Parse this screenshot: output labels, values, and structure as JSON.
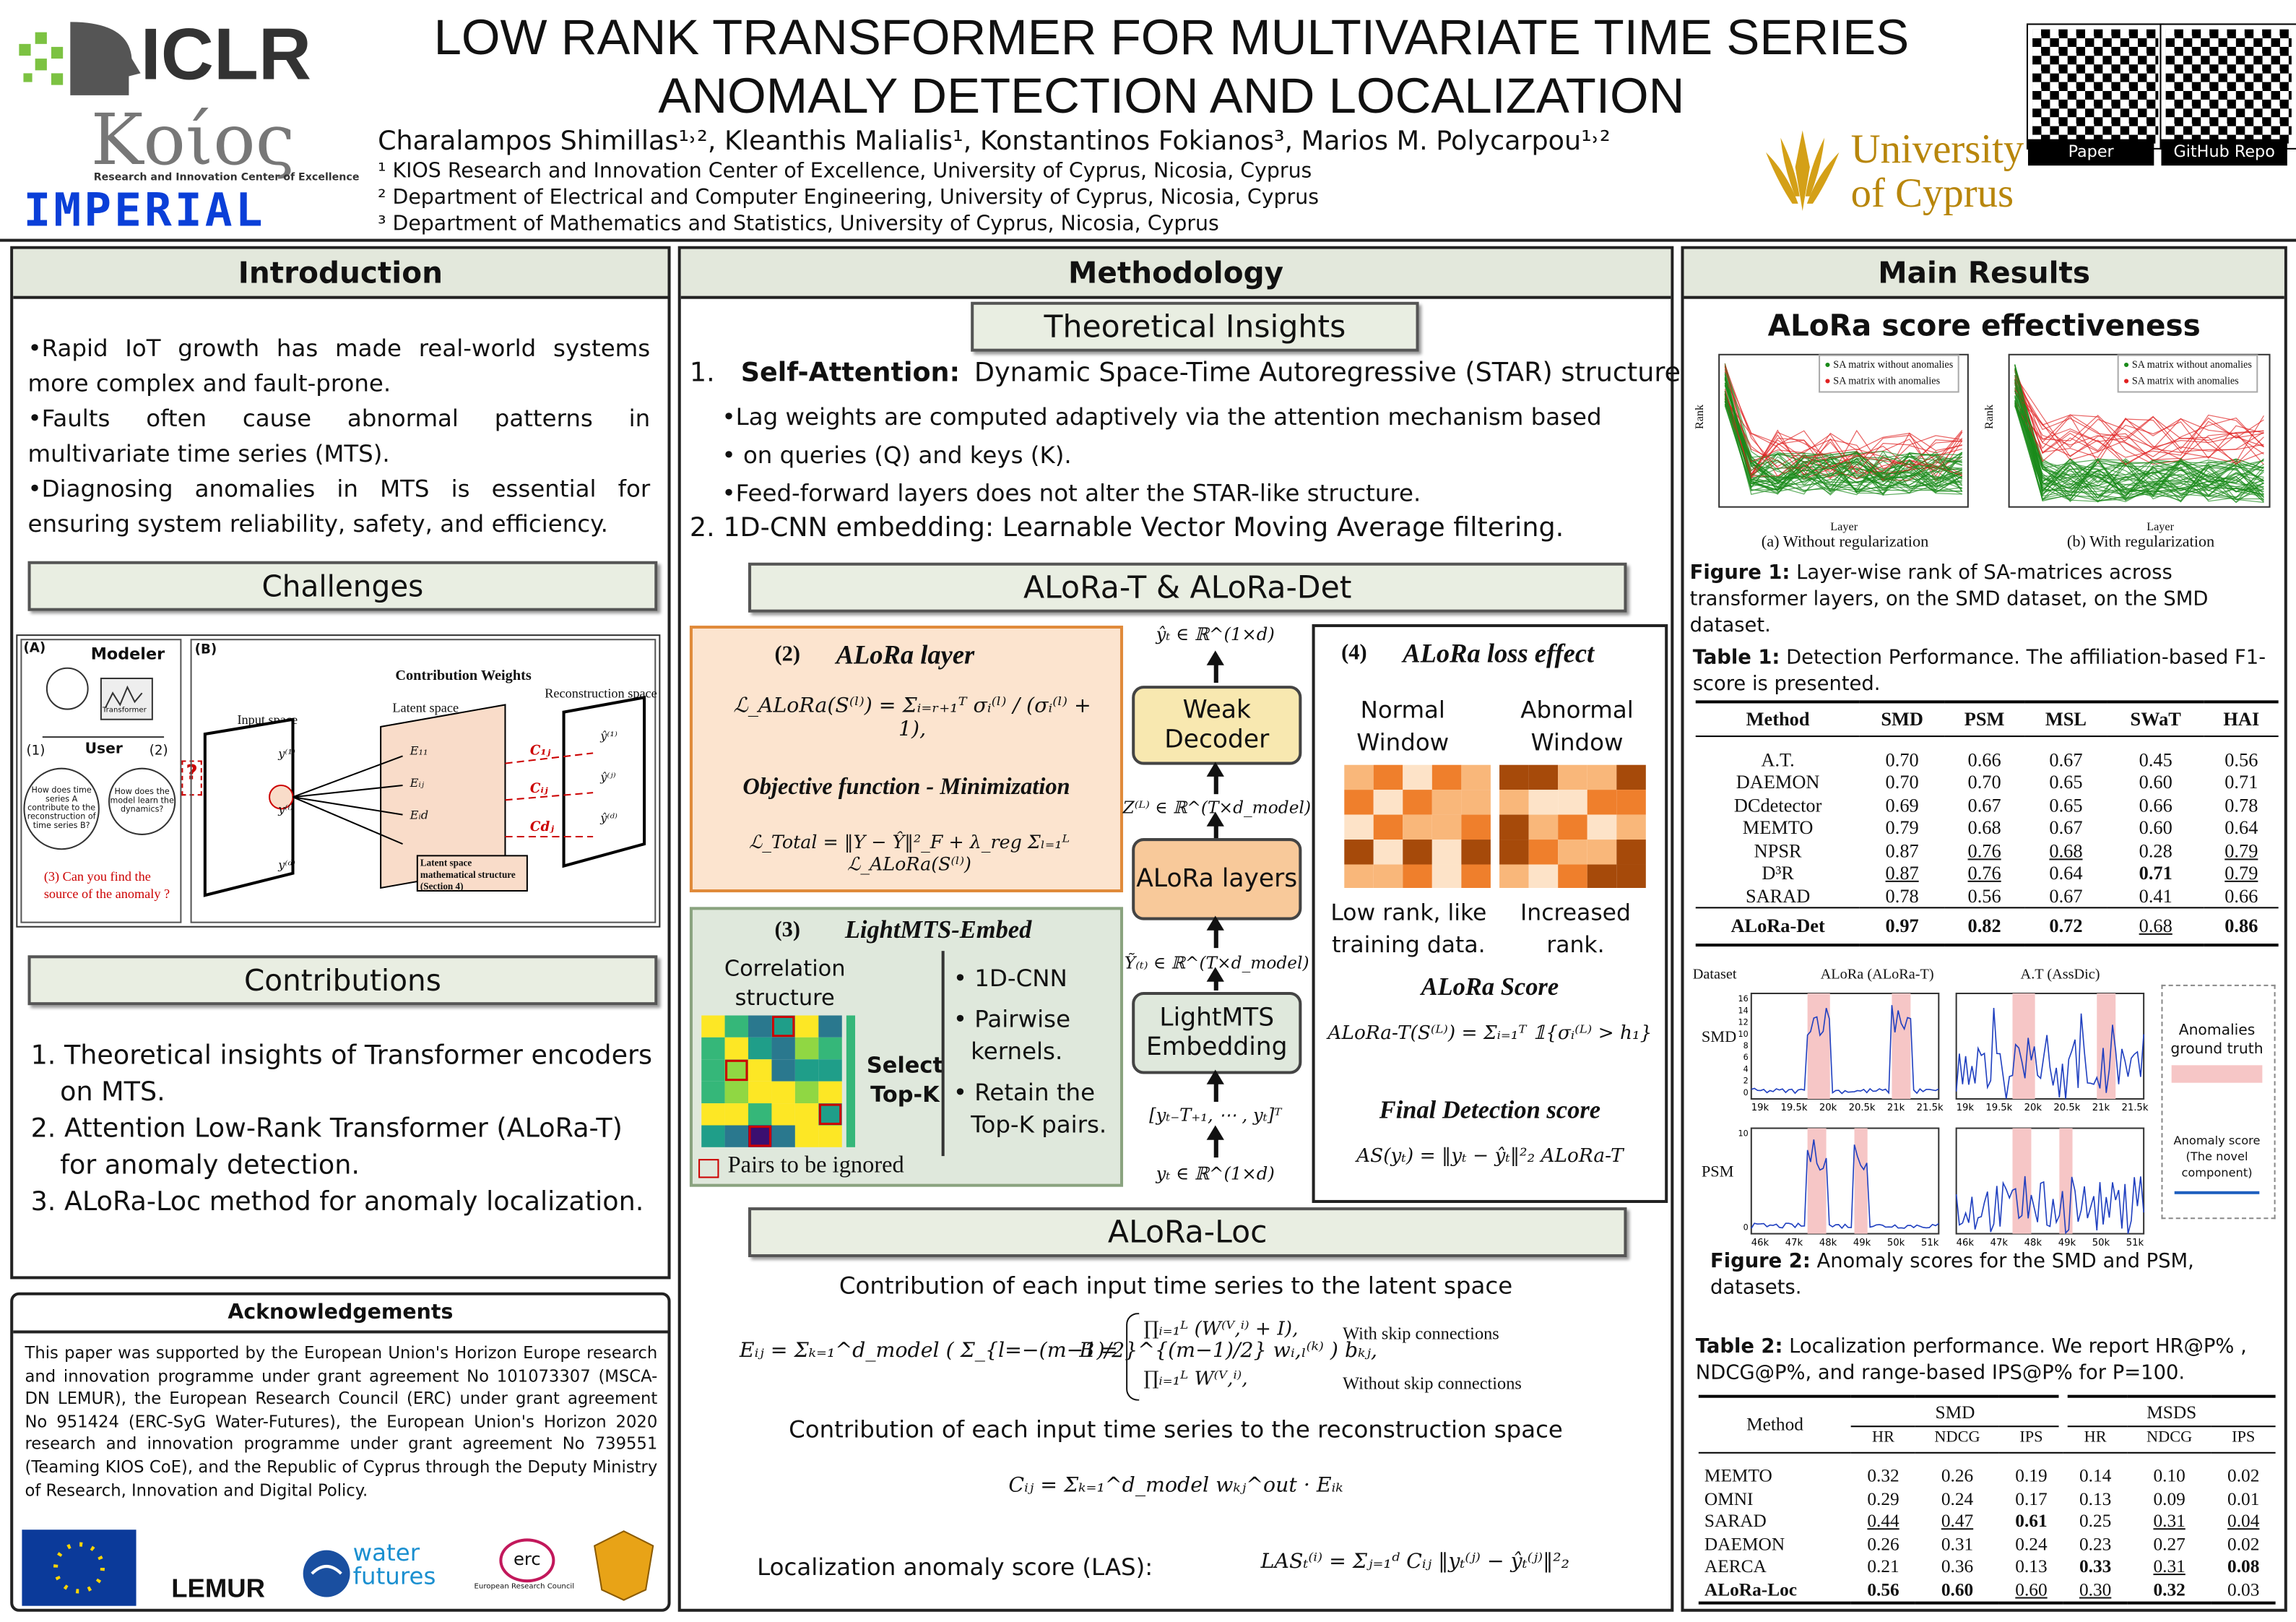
{
  "header": {
    "logo_iclr": "ICLR",
    "logo_kios": "Kοίος",
    "logo_kios_sub": "Research and Innovation Center of Excellence",
    "logo_imperial": "IMPERIAL",
    "title_lines": [
      "LOW RANK TRANSFORMER FOR MULTIVARIATE TIME SERIES",
      "ANOMALY DETECTION AND LOCALIZATION"
    ],
    "authors": "Charalampos Shimillas¹˒², Kleanthis Malialis¹, Konstantinos Fokianos³, Marios M. Polycarpou¹˒²",
    "affiliations": [
      "¹ KIOS Research and Innovation Center of Excellence, University of Cyprus, Nicosia, Cyprus",
      "² Department of Electrical and Computer Engineering, University of Cyprus, Nicosia, Cyprus",
      "³ Department of Mathematics and Statistics, University of Cyprus, Nicosia, Cyprus"
    ],
    "university": [
      "University",
      "of Cyprus"
    ],
    "qr_labels": [
      "Paper",
      "GitHub Repo"
    ]
  },
  "introduction": {
    "heading": "Introduction",
    "bullets": [
      "•Rapid IoT growth has made real-world systems more complex and fault-prone.",
      "•Faults often cause abnormal patterns in multivariate time series (MTS).",
      "•Diagnosing anomalies in MTS is essential for ensuring system reliability, safety, and efficiency."
    ]
  },
  "challenges": {
    "heading": "Challenges",
    "panel_a": "(A)",
    "modeler": "Modeler",
    "transformer": "Transformer",
    "user": "User",
    "q1_num": "(1)",
    "q2_num": "(2)",
    "q1": "How does time series A contribute to the reconstruction of time series B?",
    "q2": "How does the model learn the dynamics?",
    "q3": "(3) Can you find the source of the anomaly ?",
    "question_mark": "?",
    "panel_b": "(B)",
    "contribution_weights": "Contribution Weights",
    "input_space": "Input space",
    "latent_space": "Latent space",
    "reconstruction_space": "Reconstruction space",
    "latent_note": "Latent space mathematical structure (Section 4)",
    "inputs": [
      "y⁽¹⁾",
      "y⁽ⁱ⁾",
      "y⁽ᵈ⁾"
    ],
    "latents": [
      "E₁₁",
      "Eᵢⱼ",
      "Eᵢd"
    ],
    "weights": [
      "C₁ⱼ",
      "Cᵢⱼ",
      "Cdⱼ"
    ],
    "outputs": [
      "ŷ⁽¹⁾",
      "ŷ⁽ʲ⁾",
      "ŷ⁽ᵈ⁾"
    ]
  },
  "contributions": {
    "heading": "Contributions",
    "items": [
      "1. Theoretical insights of Transformer encoders on MTS.",
      "2. Attention Low-Rank Transformer (ALoRa-T) for anomaly detection.",
      "3. ALoRa-Loc method for anomaly localization."
    ]
  },
  "acknowledgements": {
    "heading": "Acknowledgements",
    "text": "This paper was supported by the European Union's Horizon Europe research and innovation programme under grant agreement No 101073307 (MSCA-DN LEMUR), the European Research Council (ERC) under grant agreement No 951424 (ERC-SyG Water-Futures), the European Union's Horizon 2020 research and innovation programme under grant agreement No 739551 (Teaming KIOS CoE), and the Republic of Cyprus through the Deputy Ministry of Research, Innovation and Digital Policy.",
    "logos": [
      "LEMUR",
      "water",
      "futures",
      "erc",
      "European Research Council"
    ]
  },
  "methodology": {
    "heading": "Methodology",
    "insights_heading": "Theoretical Insights",
    "item1_num": "1.",
    "item1_label": "Self-Attention:",
    "item1_text": "Dynamic Space-Time Autoregressive (STAR) structure.",
    "item1_bullets": [
      "•Lag weights are computed adaptively via the attention mechanism based",
      "• on queries (Q) and keys (K).",
      "•Feed-forward layers does not alter the STAR-like structure."
    ],
    "item2": "2.  1D-CNN embedding: Learnable Vector Moving Average filtering.",
    "alora_heading": "ALoRa-T & ALoRa-Det",
    "box2": {
      "num": "(2)",
      "title": "ALoRa layer",
      "formula": "ℒ_ALoRa(S⁽ˡ⁾) = Σᵢ₌ᵣ₊₁ᵀ σᵢ⁽ˡ⁾ / (σᵢ⁽ˡ⁾ + 1),",
      "objective": "Objective function - Minimization",
      "formula2": "ℒ_Total = ‖Y − Ŷ‖²_F + λ_reg Σₗ₌₁ᴸ ℒ_ALoRa(S⁽ˡ⁾)"
    },
    "box3": {
      "num": "(3)",
      "title": "LightMTS-Embed",
      "correlation": "Correlation structure",
      "select": "Select Top-K",
      "bullets": [
        "• 1D-CNN",
        "• Pairwise kernels.",
        "• Retain the Top-K pairs."
      ],
      "legend": "Pairs to be ignored"
    },
    "flow": {
      "output": "ŷₜ ∈ ℝ^(1×d)",
      "decoder": "Weak Decoder",
      "z": "Z⁽ᴸ⁾ ∈ ℝ^(T×d_model)",
      "layers": "ALoRa layers",
      "y_embed": "Ỹ₍ₜ₎ ∈ ℝ^(T×d_model)",
      "embedding": "LightMTS Embedding",
      "window": "[yₜ₋T₊₁, ⋯ , yₜ]ᵀ",
      "input": "yₜ ∈ ℝ^(1×d)"
    },
    "box4": {
      "num": "(4)",
      "title": "ALoRa loss effect",
      "normal": "Normal Window",
      "abnormal": "Abnormal Window",
      "normal_note": "Low rank, like training data.",
      "abnormal_note": "Increased rank.",
      "score_title": "ALoRa Score",
      "score_formula": "ALoRa-T(S⁽ᴸ⁾) = Σᵢ₌₁ᵀ 𝟙{σᵢ⁽ᴸ⁾ > h₁}",
      "final_title": "Final Detection score",
      "final_formula": "AS(yₜ) = ‖yₜ − ŷₜ‖²₂ ALoRa-T"
    },
    "loc": {
      "heading": "ALoRa-Loc",
      "latent_line": "Contribution of each input time series to the latent space",
      "e_formula": "Eᵢⱼ = Σₖ₌₁^d_model ( Σ_{l=−(m−1)/2}^{(m−1)/2} wᵢ,ₗ⁽ᵏ⁾ ) bₖⱼ,",
      "b_label": "B =",
      "b_case1": "∏ᵢ₌₁ᴸ (W⁽ⱽ,ⁱ⁾ + I),",
      "b_case1_note": "With skip  connections",
      "b_case2": "∏ᵢ₌₁ᴸ W⁽ⱽ,ⁱ⁾,",
      "b_case2_note": "Without  skip  connections",
      "recon_line": "Contribution of each input time series to the reconstruction space",
      "c_formula": "Cᵢⱼ = Σₖ₌₁^d_model wₖⱼ^out · Eᵢₖ",
      "las_label": "Localization anomaly score (LAS):",
      "las_formula": "LASₜ⁽ⁱ⁾ = Σⱼ₌₁ᵈ Cᵢⱼ ‖yₜ⁽ʲ⁾ − ŷₜ⁽ʲ⁾‖²₂"
    }
  },
  "results": {
    "heading": "Main Results",
    "subheading": "ALoRa score effectiveness",
    "figure1": {
      "legend": [
        "SA matrix without anomalies",
        "SA matrix with anomalies"
      ],
      "ylabel": "Rank",
      "xlabel": "Layer",
      "panels": [
        "(a) Without regularization",
        "(b) With regularization"
      ],
      "caption_label": "Figure 1:",
      "caption": "Layer-wise rank of SA-matrices across transformer layers, on the SMD dataset, on the SMD dataset."
    },
    "table1": {
      "caption_label": "Table 1:",
      "caption": "Detection Performance. The affiliation-based F1-score is presented.",
      "columns": [
        "Method",
        "SMD",
        "PSM",
        "MSL",
        "SWaT",
        "HAI"
      ],
      "rows": [
        [
          "A.T.",
          "0.70",
          "0.66",
          "0.67",
          "0.45",
          "0.56"
        ],
        [
          "DAEMON",
          "0.70",
          "0.70",
          "0.65",
          "0.60",
          "0.71"
        ],
        [
          "DCdetector",
          "0.69",
          "0.67",
          "0.65",
          "0.66",
          "0.78"
        ],
        [
          "MEMTO",
          "0.79",
          "0.68",
          "0.67",
          "0.60",
          "0.64"
        ],
        [
          "NPSR",
          "0.87",
          "0.76",
          "0.68",
          "0.28",
          "0.79"
        ],
        [
          "D³R",
          "0.87",
          "0.76",
          "0.64",
          "0.71",
          "0.79"
        ],
        [
          "SARAD",
          "0.78",
          "0.56",
          "0.67",
          "0.41",
          "0.66"
        ],
        [
          "ALoRa-Det",
          "0.97",
          "0.82",
          "0.72",
          "0.68",
          "0.86"
        ]
      ],
      "bold_cells": [
        [
          5,
          4
        ],
        [
          7,
          0
        ],
        [
          7,
          1
        ],
        [
          7,
          2
        ],
        [
          7,
          3
        ],
        [
          7,
          5
        ]
      ],
      "underline_cells": [
        [
          4,
          2
        ],
        [
          4,
          3
        ],
        [
          4,
          5
        ],
        [
          5,
          1
        ],
        [
          5,
          2
        ],
        [
          5,
          5
        ],
        [
          7,
          4
        ]
      ]
    },
    "figure2": {
      "dataset_label": "Dataset",
      "panel_titles": [
        "ALoRa (ALoRa-T)",
        "A.T (AssDic)"
      ],
      "datasets": [
        "SMD",
        "PSM"
      ],
      "ylabel": "Anomaly score",
      "smd_yticks": [
        "0",
        "2",
        "4",
        "6",
        "8",
        "10",
        "12",
        "14",
        "16"
      ],
      "psm_yticks": [
        "0",
        "10"
      ],
      "smd_xticks": [
        "19k",
        "19.5k",
        "20k",
        "20.5k",
        "21k",
        "21.5k"
      ],
      "psm_xticks": [
        "46k",
        "47k",
        "48k",
        "49k",
        "50k",
        "51k"
      ],
      "legend_anomalies": "Anomalies ground truth",
      "legend_score": "Anomaly score (The novel component)",
      "caption_label": "Figure 2:",
      "caption": "Anomaly scores for the SMD and PSM, datasets."
    },
    "table2": {
      "caption_label": "Table 2:",
      "caption": "Localization performance. We report HR@P% , NDCG@P%, and range-based IPS@P% for P=100.",
      "method": "Method",
      "groups": [
        "SMD",
        "MSDS"
      ],
      "subcolumns": [
        "HR",
        "NDCG",
        "IPS"
      ],
      "rows": [
        [
          "MEMTO",
          "0.32",
          "0.26",
          "0.19",
          "0.14",
          "0.10",
          "0.02"
        ],
        [
          "OMNI",
          "0.29",
          "0.24",
          "0.17",
          "0.13",
          "0.09",
          "0.01"
        ],
        [
          "SARAD",
          "0.44",
          "0.47",
          "0.61",
          "0.25",
          "0.31",
          "0.04"
        ],
        [
          "DAEMON",
          "0.26",
          "0.31",
          "0.24",
          "0.23",
          "0.27",
          "0.02"
        ],
        [
          "AERCA",
          "0.21",
          "0.36",
          "0.13",
          "0.33",
          "0.31",
          "0.08"
        ],
        [
          "ALoRa-Loc",
          "0.56",
          "0.60",
          "0.60",
          "0.30",
          "0.32",
          "0.03"
        ]
      ],
      "bold_cells": [
        [
          2,
          3
        ],
        [
          4,
          4
        ],
        [
          4,
          6
        ],
        [
          5,
          0
        ],
        [
          5,
          1
        ],
        [
          5,
          2
        ],
        [
          5,
          5
        ]
      ],
      "underline_cells": [
        [
          2,
          1
        ],
        [
          2,
          2
        ],
        [
          2,
          5
        ],
        [
          2,
          6
        ],
        [
          4,
          5
        ],
        [
          5,
          3
        ],
        [
          5,
          4
        ]
      ]
    }
  }
}
